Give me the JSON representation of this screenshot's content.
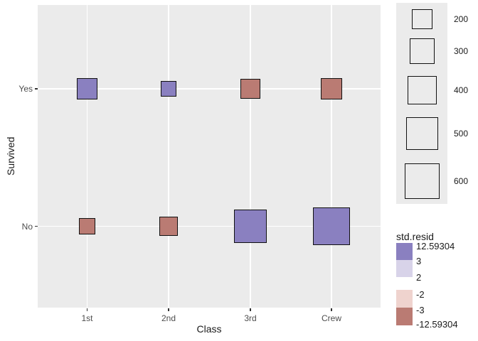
{
  "axes": {
    "x": {
      "title": "Class",
      "ticks": [
        "1st",
        "2nd",
        "3rd",
        "Crew"
      ]
    },
    "y": {
      "title": "Survived",
      "ticks": [
        "Yes",
        "No"
      ]
    }
  },
  "chart_data": {
    "type": "scatter",
    "subtype": "balloon-mosaic",
    "title": "",
    "xlabel": "Class",
    "ylabel": "Survived",
    "x_categories": [
      "1st",
      "2nd",
      "3rd",
      "Crew"
    ],
    "y_categories": [
      "Yes",
      "No"
    ],
    "points": [
      {
        "class": "1st",
        "survived": "Yes",
        "count": 203,
        "std_resid": "> 3",
        "color": "#8a80c0"
      },
      {
        "class": "2nd",
        "survived": "Yes",
        "count": 118,
        "std_resid": "> 3",
        "color": "#8a80c0"
      },
      {
        "class": "3rd",
        "survived": "Yes",
        "count": 178,
        "std_resid": "< -3",
        "color": "#ba7b73"
      },
      {
        "class": "Crew",
        "survived": "Yes",
        "count": 212,
        "std_resid": "< -3",
        "color": "#ba7b73"
      },
      {
        "class": "1st",
        "survived": "No",
        "count": 122,
        "std_resid": "< -3",
        "color": "#ba7b73"
      },
      {
        "class": "2nd",
        "survived": "No",
        "count": 167,
        "std_resid": "< -3",
        "color": "#ba7b73"
      },
      {
        "class": "3rd",
        "survived": "No",
        "count": 528,
        "std_resid": "> 3",
        "color": "#8a80c0"
      },
      {
        "class": "Crew",
        "survived": "No",
        "count": 673,
        "std_resid": "> 3",
        "color": "#8a80c0"
      }
    ],
    "size_legend": {
      "values": [
        "200",
        "300",
        "400",
        "500",
        "600"
      ]
    },
    "color_legend": {
      "title": "std.resid",
      "labels": [
        "12.59304",
        "3",
        "2",
        "-2",
        "-3",
        "-12.59304"
      ],
      "segments": [
        {
          "from": "12.59304",
          "to": "3",
          "color": "#8a80c0"
        },
        {
          "from": "3",
          "to": "2",
          "color": "#d8d3e9"
        },
        {
          "from": "-2",
          "to": "-3",
          "color": "#efd3ce"
        },
        {
          "from": "-3",
          "to": "-12.59304",
          "color": "#ba7b73"
        }
      ]
    }
  },
  "style": {
    "panel_bg": "#ebebeb",
    "legend_bg": "#ebebeb",
    "grid_color": "#ffffff",
    "square_border": "#101010",
    "tick_text": "#4d4d4d",
    "title_text": "#1a1a1a"
  }
}
